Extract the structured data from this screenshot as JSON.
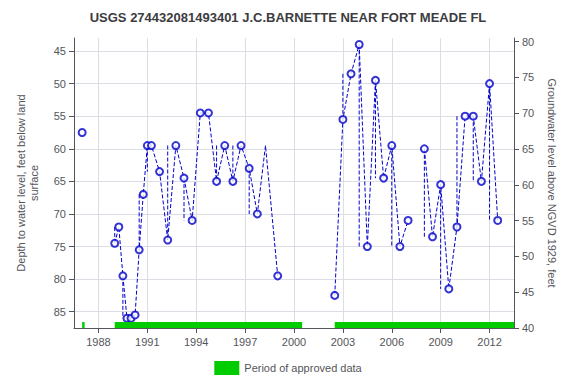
{
  "chart_data": {
    "type": "scatter",
    "title": "USGS 274432081493401 J.C.BARNETTE NEAR FORT MEADE FL",
    "y_label": "Depth to water level, feet below land\nsurface",
    "y2_label": "Groundwater level above NGVD 1929, feet",
    "xlim": [
      1986.5,
      2013.5
    ],
    "xticks": [
      1988,
      1991,
      1994,
      1997,
      2000,
      2003,
      2006,
      2009,
      2012
    ],
    "ylim": [
      87.5,
      43
    ],
    "yticks": [
      45,
      50,
      55,
      60,
      65,
      70,
      75,
      80,
      85
    ],
    "y2lim": [
      40,
      80.5
    ],
    "y2ticks": [
      80,
      75,
      70,
      65,
      60,
      55,
      50,
      45,
      40
    ],
    "grid": true,
    "legend": "bottom",
    "series": [
      {
        "type": "scatter",
        "marker": "circle",
        "color": "#0000cc",
        "x": [
          1987.0,
          1989.0,
          1989.25,
          1989.5,
          1989.75,
          1990.0,
          1990.25,
          1990.5,
          1990.75,
          1991.0,
          1991.25,
          1991.75,
          1992.25,
          1992.75,
          1993.25,
          1993.75,
          1994.25,
          1994.75,
          1995.25,
          1995.75,
          1996.25,
          1996.75,
          1997.25,
          1997.75,
          1999.0,
          2002.5,
          2003.0,
          2003.5,
          2004.0,
          2004.5,
          2005.0,
          2005.5,
          2006.0,
          2006.5,
          2007.0,
          2008.0,
          2008.5,
          2009.0,
          2009.5,
          2010.0,
          2010.5,
          2011.0,
          2011.5,
          2012.0,
          2012.5
        ],
        "values": [
          57.5,
          74.5,
          72.0,
          79.5,
          86.0,
          86.0,
          85.5,
          75.5,
          67.0,
          59.5,
          59.5,
          63.5,
          74.0,
          59.5,
          64.5,
          71.0,
          54.5,
          54.5,
          65.0,
          59.5,
          65.0,
          59.5,
          63.0,
          70.0,
          79.5,
          82.5,
          55.5,
          48.5,
          44.0,
          75.0,
          49.5,
          64.5,
          59.5,
          75.0,
          71.0,
          60.0,
          73.5,
          65.5,
          81.5,
          72.0,
          55.0,
          55.0,
          65.0,
          50.0,
          71.0
        ]
      },
      {
        "type": "line",
        "line_style": "dashed",
        "color": "#0000cc",
        "paths": [
          [
            [
              1989.0,
              74.5
            ],
            [
              1989.25,
              72.0
            ],
            [
              1989.5,
              79.5
            ],
            [
              1989.75,
              86.0
            ],
            [
              1990.0,
              86.0
            ],
            [
              1990.25,
              85.5
            ],
            [
              1990.5,
              75.5
            ],
            [
              1990.75,
              67.0
            ],
            [
              1991.0,
              59.5
            ],
            [
              1991.25,
              59.5
            ],
            [
              1991.75,
              63.5
            ],
            [
              1992.25,
              74.0
            ],
            [
              1992.75,
              59.5
            ],
            [
              1993.25,
              64.5
            ],
            [
              1993.75,
              71.0
            ],
            [
              1994.25,
              54.5
            ],
            [
              1994.75,
              54.5
            ],
            [
              1995.25,
              65.0
            ],
            [
              1995.75,
              59.5
            ],
            [
              1996.25,
              65.0
            ],
            [
              1996.75,
              59.5
            ],
            [
              1997.25,
              63.0
            ],
            [
              1997.75,
              70.0
            ],
            [
              1998.25,
              59.5
            ],
            [
              1999.0,
              79.5
            ]
          ],
          [
            [
              2002.5,
              82.5
            ],
            [
              2003.0,
              55.5
            ],
            [
              2003.5,
              48.5
            ],
            [
              2004.0,
              44.0
            ],
            [
              2004.5,
              75.0
            ],
            [
              2005.0,
              49.5
            ],
            [
              2005.5,
              64.5
            ],
            [
              2006.0,
              59.5
            ],
            [
              2006.5,
              75.0
            ],
            [
              2007.0,
              71.0
            ]
          ],
          [
            [
              2008.0,
              60.0
            ],
            [
              2008.5,
              73.5
            ],
            [
              2009.0,
              65.5
            ],
            [
              2009.5,
              81.5
            ],
            [
              2010.0,
              72.0
            ],
            [
              2010.5,
              55.0
            ],
            [
              2011.0,
              55.0
            ],
            [
              2011.5,
              65.0
            ],
            [
              2012.0,
              50.0
            ],
            [
              2012.5,
              71.0
            ]
          ],
          [
            [
              1989.0,
              72.0
            ],
            [
              1989.0,
              74.5
            ]
          ],
          [
            [
              1989.5,
              79.5
            ],
            [
              1989.5,
              86.0
            ]
          ],
          [
            [
              1990.0,
              85.5
            ],
            [
              1990.0,
              86.0
            ]
          ],
          [
            [
              1990.5,
              67.0
            ],
            [
              1990.5,
              75.5
            ]
          ],
          [
            [
              1991.0,
              59.5
            ],
            [
              1991.0,
              63.5
            ]
          ],
          [
            [
              1992.25,
              59.5
            ],
            [
              1992.25,
              74.0
            ]
          ],
          [
            [
              1993.25,
              64.5
            ],
            [
              1993.25,
              71.0
            ]
          ],
          [
            [
              1994.25,
              54.5
            ],
            [
              1994.25,
              54.5
            ]
          ],
          [
            [
              1995.25,
              59.5
            ],
            [
              1995.25,
              65.0
            ]
          ],
          [
            [
              1996.25,
              59.5
            ],
            [
              1996.25,
              65.0
            ]
          ],
          [
            [
              1997.25,
              63.0
            ],
            [
              1997.25,
              70.0
            ]
          ],
          [
            [
              2003.0,
              48.5
            ],
            [
              2003.0,
              55.5
            ]
          ],
          [
            [
              2004.0,
              44.0
            ],
            [
              2004.0,
              75.0
            ]
          ],
          [
            [
              2005.0,
              49.5
            ],
            [
              2005.0,
              64.5
            ]
          ],
          [
            [
              2006.0,
              59.5
            ],
            [
              2006.0,
              75.0
            ]
          ],
          [
            [
              2008.0,
              60.0
            ],
            [
              2008.0,
              73.5
            ]
          ],
          [
            [
              2009.0,
              65.5
            ],
            [
              2009.0,
              81.5
            ]
          ],
          [
            [
              2010.0,
              55.0
            ],
            [
              2010.0,
              72.0
            ]
          ],
          [
            [
              2011.0,
              55.0
            ],
            [
              2011.0,
              65.0
            ]
          ],
          [
            [
              2012.0,
              50.0
            ],
            [
              2012.0,
              71.0
            ]
          ]
        ]
      },
      {
        "type": "bar",
        "name": "Period of approved data",
        "color": "#00cc00",
        "periods": [
          [
            1987.0,
            1987.15
          ],
          [
            1989.0,
            2000.5
          ],
          [
            2002.5,
            2013.5
          ]
        ]
      }
    ]
  }
}
